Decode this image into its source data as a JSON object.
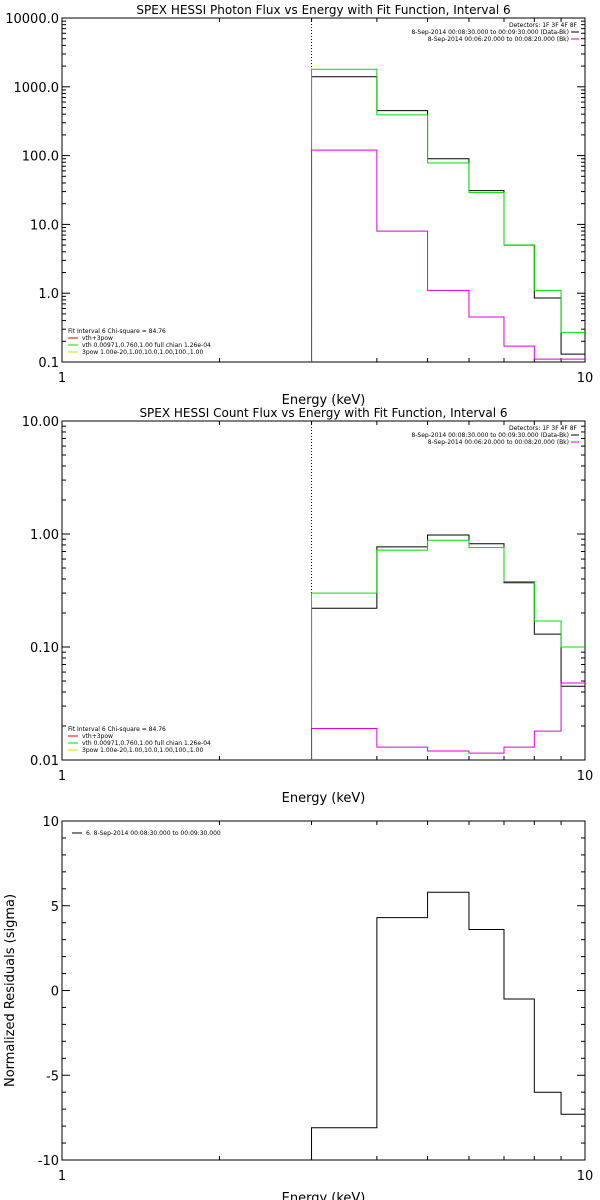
{
  "chart_data": [
    {
      "type": "line",
      "title": "SPEX HESSI Photon Flux vs Energy with Fit Function, Interval 6",
      "xlabel": "Energy (keV)",
      "ylabel": "",
      "xscale": "log",
      "yscale": "log",
      "xlim": [
        1,
        10
      ],
      "ylim": [
        0.1,
        10000
      ],
      "x_tick_values": [
        1,
        10
      ],
      "x_tick_labels": [
        "1",
        "10"
      ],
      "y_tick_values": [
        0.1,
        1,
        10,
        100,
        1000,
        10000
      ],
      "y_tick_labels": [
        "0.1",
        "1.0",
        "10.0",
        "100.0",
        "1000.0",
        "10000.0"
      ],
      "vline_x": 3,
      "bin_edges": [
        3,
        4,
        5,
        6,
        7,
        8,
        9,
        10
      ],
      "series": [
        {
          "name": "",
          "color": "#000000",
          "values": [
            1400,
            450,
            90,
            31,
            5,
            0.85,
            0.13
          ]
        },
        {
          "name": "",
          "color": "#00dd00",
          "values": [
            1800,
            390,
            78,
            29,
            5,
            1.1,
            0.27
          ]
        },
        {
          "name": "",
          "color": "#dd00dd",
          "values": [
            120,
            8,
            1.1,
            0.45,
            0.17,
            0.11,
            0.11
          ]
        }
      ],
      "legend_top": [
        "Detectors: 1F 3F 4F 8F",
        "8-Sep-2014 00:08:30.000 to 00:09:30.000 (Data-Bk)",
        "8-Sep-2014 00:06:20.000 to 00:08:20.000 (Bk)"
      ],
      "legend_top_colors": [
        "",
        "#000000",
        "#dd00dd"
      ],
      "legend_bottom": [
        "Fit Interval 6   Chi-square = 84.76",
        "vth+3pow",
        "vth 0.00971,0.760,1.00  full chian 1.26e-04",
        "3pow 1.00e-20,1.00,10.0,1.00,100.,1.00"
      ],
      "legend_bottom_colors": [
        "",
        "#dd0000",
        "#00dd00",
        "#dddd00"
      ]
    },
    {
      "type": "line",
      "title": "SPEX HESSI Count Flux vs Energy with Fit Function, Interval 6",
      "xlabel": "Energy (keV)",
      "ylabel": "",
      "xscale": "log",
      "yscale": "log",
      "xlim": [
        1,
        10
      ],
      "ylim": [
        0.01,
        10
      ],
      "x_tick_values": [
        1,
        10
      ],
      "x_tick_labels": [
        "1",
        "10"
      ],
      "y_tick_values": [
        0.01,
        0.1,
        1,
        10
      ],
      "y_tick_labels": [
        "0.01",
        "0.10",
        "1.00",
        "10.00"
      ],
      "vline_x": 3,
      "bin_edges": [
        3,
        4,
        5,
        6,
        7,
        8,
        9,
        10
      ],
      "series": [
        {
          "name": "",
          "color": "#000000",
          "values": [
            0.22,
            0.77,
            0.98,
            0.82,
            0.37,
            0.13,
            0.045
          ]
        },
        {
          "name": "",
          "color": "#00dd00",
          "values": [
            0.3,
            0.72,
            0.88,
            0.76,
            0.38,
            0.17,
            0.1
          ]
        },
        {
          "name": "",
          "color": "#dd00dd",
          "values": [
            0.019,
            0.013,
            0.012,
            0.0115,
            0.013,
            0.018,
            0.048
          ]
        }
      ],
      "legend_top": [
        "Detectors: 1F 3F 4F 8F",
        "8-Sep-2014 00:08:30.000 to 00:09:30.000 (Data-Bk)",
        "8-Sep-2014 00:06:20.000 to 00:08:20.000 (Bk)"
      ],
      "legend_top_colors": [
        "",
        "#000000",
        "#dd00dd"
      ],
      "legend_bottom": [
        "Fit Interval 6   Chi-square = 84.76",
        "vth+3pow",
        "vth 0.00971,0.760,1.00  full chian 1.26e-04",
        "3pow 1.00e-20,1.00,10.0,1.00,100.,1.00"
      ],
      "legend_bottom_colors": [
        "",
        "#dd0000",
        "#00dd00",
        "#dddd00"
      ]
    },
    {
      "type": "line",
      "title": "",
      "xlabel": "Energy (keV)",
      "ylabel": "Normalized Residuals (sigma)",
      "xscale": "log",
      "yscale": "linear",
      "xlim": [
        1,
        10
      ],
      "ylim": [
        -10,
        10
      ],
      "x_tick_values": [
        1,
        10
      ],
      "x_tick_labels": [
        "1",
        "10"
      ],
      "y_tick_values": [
        -10,
        -5,
        0,
        5,
        10
      ],
      "y_tick_labels": [
        "-10",
        "-5",
        "0",
        "5",
        "10"
      ],
      "bin_edges": [
        3,
        4,
        5,
        6,
        7,
        8,
        9,
        10
      ],
      "series": [
        {
          "name": "",
          "color": "#000000",
          "values": [
            -8.1,
            4.3,
            5.8,
            3.6,
            -0.5,
            -6.0,
            -7.3
          ]
        }
      ],
      "legend_top": [
        "6. 8-Sep-2014 00:08:30.000 to 00:09:30.000"
      ],
      "legend_top_colors": [
        "#000000"
      ],
      "legend_bottom": [],
      "legend_bottom_colors": []
    }
  ]
}
